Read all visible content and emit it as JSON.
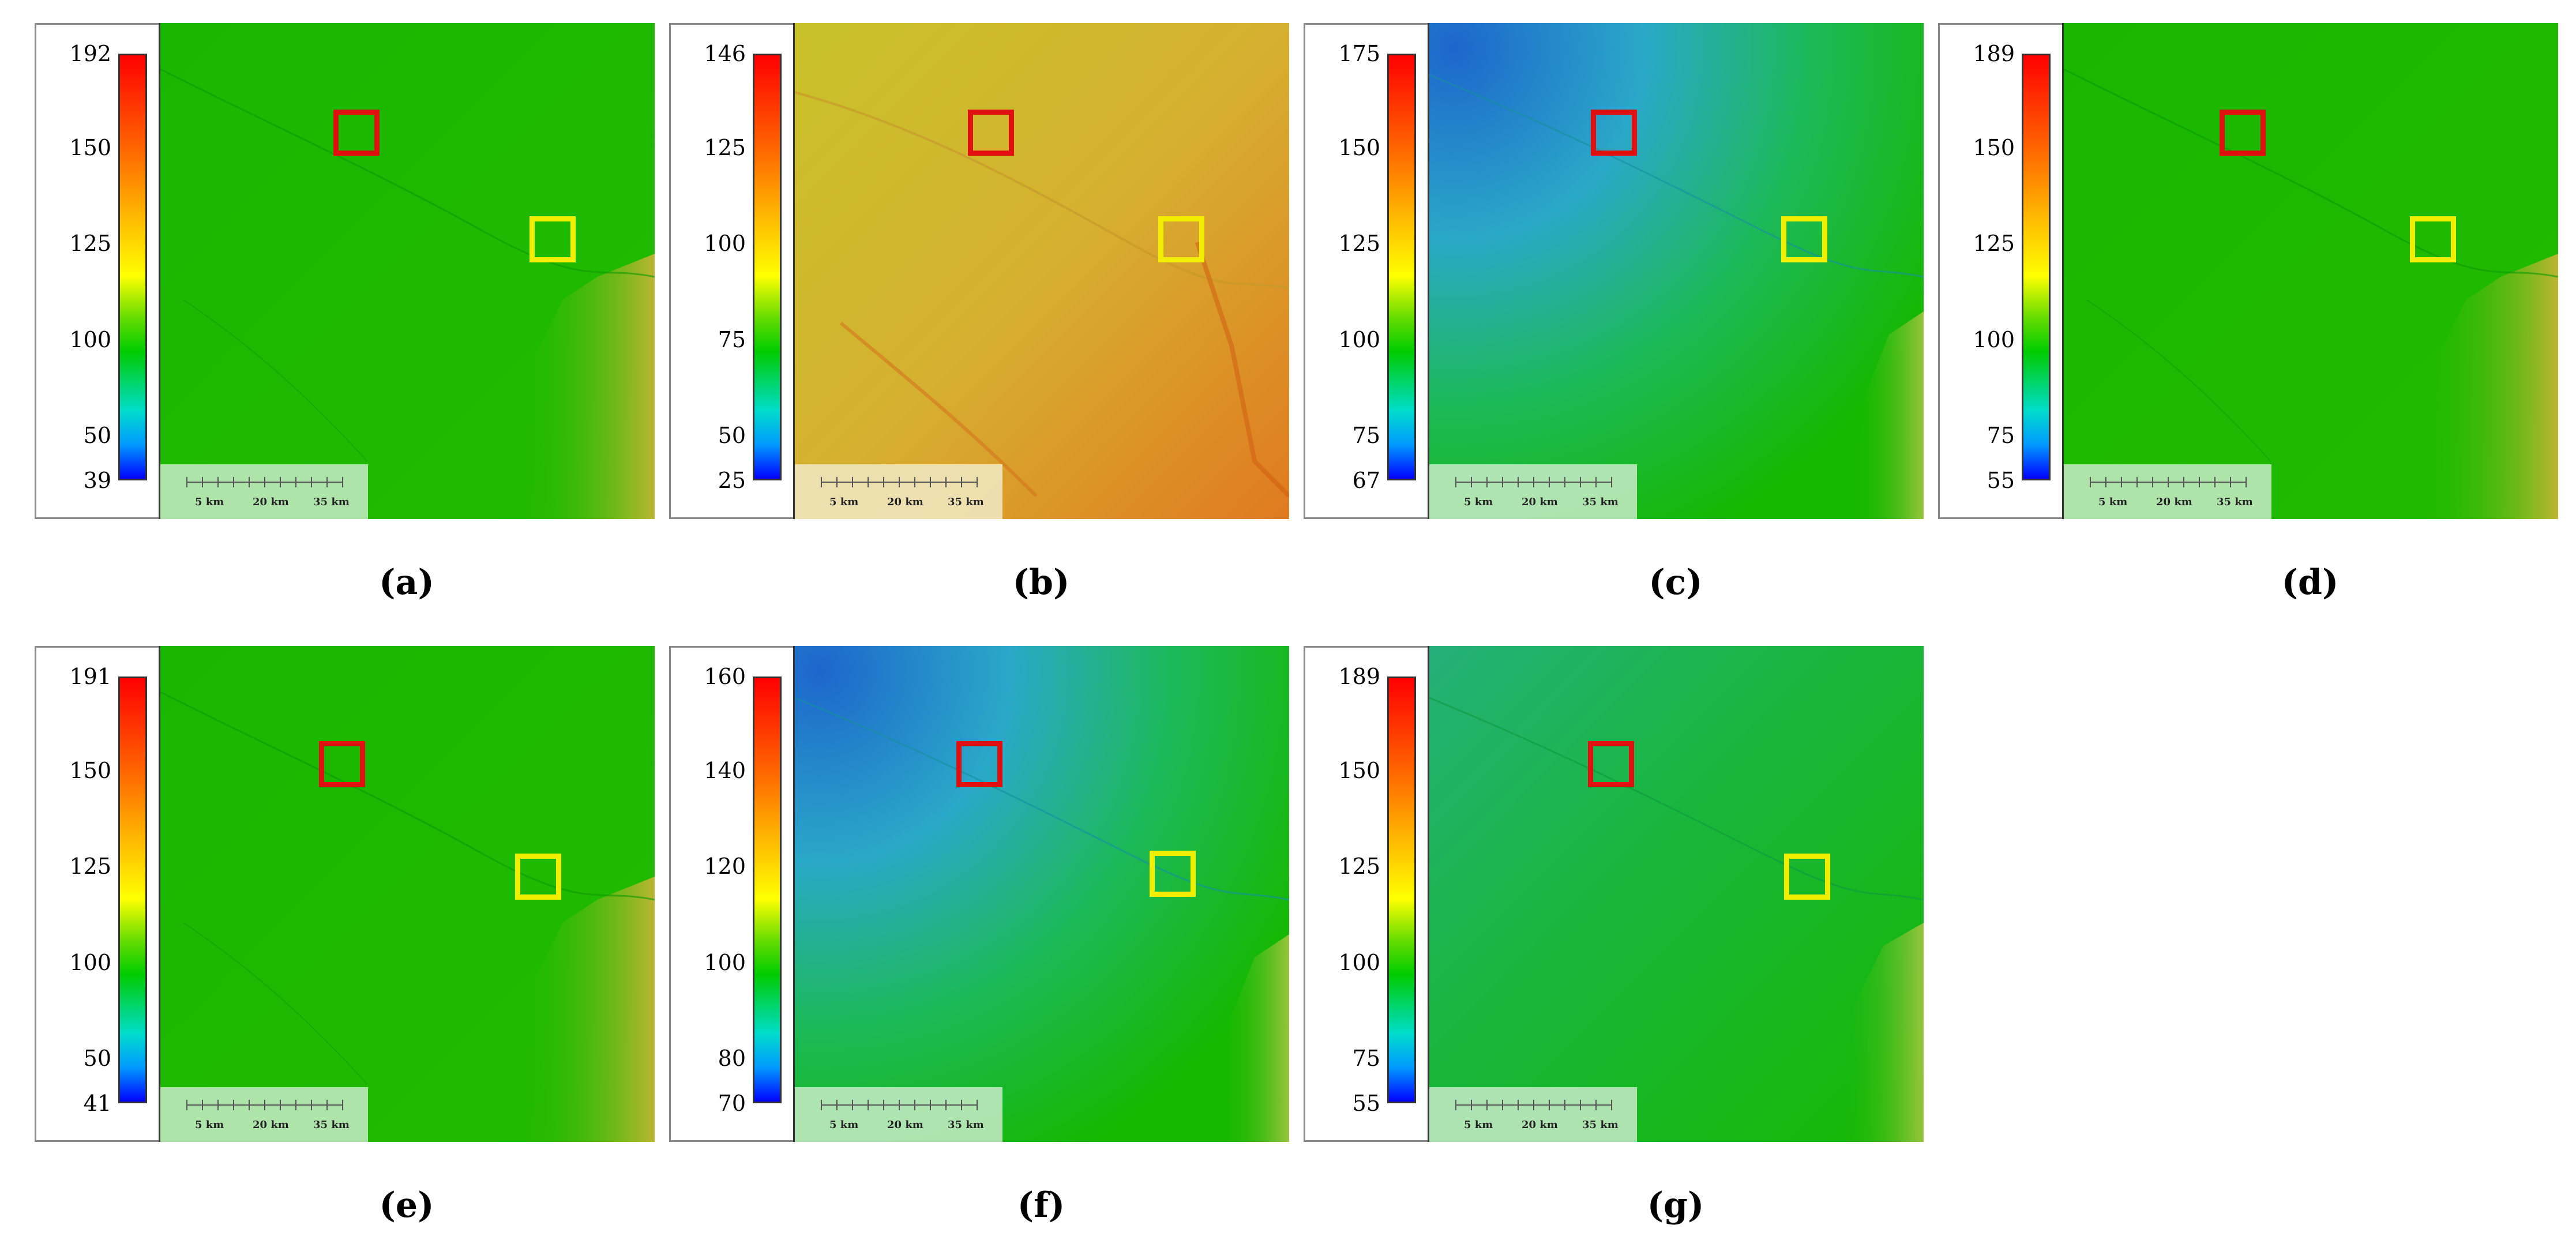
{
  "figure": {
    "colors": {
      "green_map": "#16b800",
      "tan_map": "#d8b53a",
      "blue_corner": "#1d66cc",
      "roi_red": "#e01010",
      "roi_yellow": "#f2ee00"
    },
    "scalebar_labels": [
      "5 km",
      "20 km",
      "35 km"
    ],
    "panels": [
      {
        "caption": "(a)",
        "legend_ticks": [
          "192",
          "150",
          "125",
          "100",
          "50",
          "39"
        ],
        "tick_levels": [
          1.0,
          0.78,
          0.555,
          0.33,
          0.105,
          0.0
        ],
        "theme": "green"
      },
      {
        "caption": "(b)",
        "legend_ticks": [
          "146",
          "125",
          "100",
          "75",
          "50",
          "25"
        ],
        "tick_levels": [
          1.0,
          0.78,
          0.555,
          0.33,
          0.105,
          0.0
        ],
        "theme": "tan"
      },
      {
        "caption": "(c)",
        "legend_ticks": [
          "175",
          "150",
          "125",
          "100",
          "75",
          "67"
        ],
        "tick_levels": [
          1.0,
          0.78,
          0.555,
          0.33,
          0.105,
          0.0
        ],
        "theme": "blue"
      },
      {
        "caption": "(d)",
        "legend_ticks": [
          "189",
          "150",
          "125",
          "100",
          "75",
          "55"
        ],
        "tick_levels": [
          1.0,
          0.78,
          0.555,
          0.33,
          0.105,
          0.0
        ],
        "theme": "green"
      },
      {
        "caption": "(e)",
        "legend_ticks": [
          "191",
          "150",
          "125",
          "100",
          "50",
          "41"
        ],
        "tick_levels": [
          1.0,
          0.78,
          0.555,
          0.33,
          0.105,
          0.0
        ],
        "theme": "green"
      },
      {
        "caption": "(f)",
        "legend_ticks": [
          "160",
          "140",
          "120",
          "100",
          "80",
          "70"
        ],
        "tick_levels": [
          1.0,
          0.78,
          0.555,
          0.33,
          0.105,
          0.0
        ],
        "theme": "blue"
      },
      {
        "caption": "(g)",
        "legend_ticks": [
          "189",
          "150",
          "125",
          "100",
          "75",
          "55"
        ],
        "tick_levels": [
          1.0,
          0.78,
          0.555,
          0.33,
          0.105,
          0.0
        ],
        "theme": "lightblue"
      }
    ]
  }
}
